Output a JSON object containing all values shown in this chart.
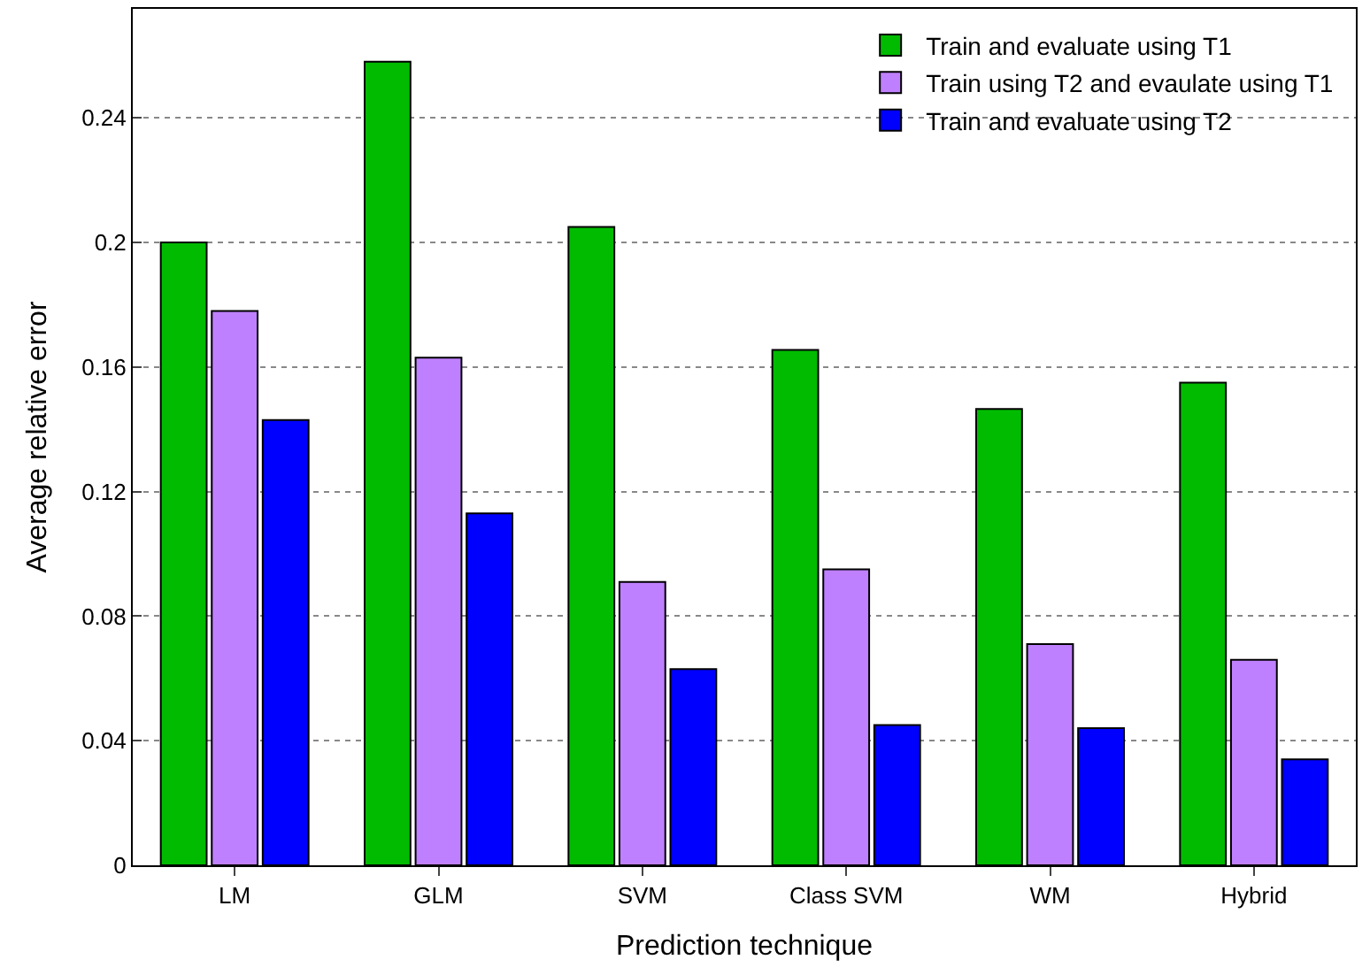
{
  "chart_data": {
    "type": "bar",
    "xlabel": "Prediction technique",
    "ylabel": "Average relative error",
    "categories": [
      "LM",
      "GLM",
      "SVM",
      "Class SVM",
      "WM",
      "Hybrid"
    ],
    "series": [
      {
        "name": "Train and evaluate using T1",
        "color": "#00bb00",
        "values": [
          0.2,
          0.258,
          0.205,
          0.1655,
          0.1465,
          0.155
        ]
      },
      {
        "name": "Train using T2 and evaulate using T1",
        "color": "#bf80ff",
        "values": [
          0.178,
          0.163,
          0.091,
          0.095,
          0.071,
          0.066
        ]
      },
      {
        "name": "Train and evaluate using T2",
        "color": "#0000ff",
        "values": [
          0.143,
          0.113,
          0.063,
          0.045,
          0.044,
          0.034
        ]
      }
    ],
    "ylim": [
      0,
      0.275
    ],
    "yticks": [
      0,
      0.04,
      0.08,
      0.12,
      0.16,
      0.2,
      0.24
    ],
    "grid": "y",
    "legend": "top right"
  }
}
